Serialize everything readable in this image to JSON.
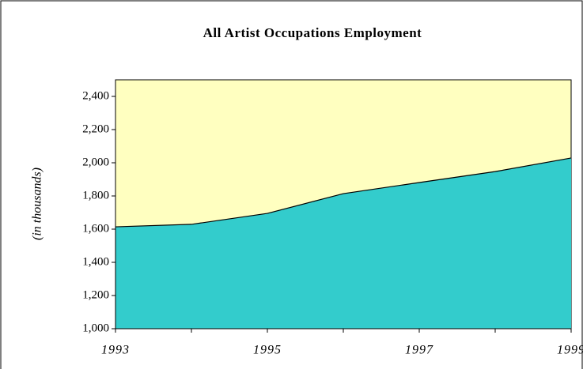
{
  "chart_data": {
    "type": "area",
    "title": "All Artist Occupations Employment",
    "y_label": "(in thousands)",
    "x": [
      1993,
      1994,
      1995,
      1996,
      1997,
      1998,
      1999
    ],
    "series": [
      {
        "name": "Employment",
        "color": "#33cccc",
        "values": [
          1614,
          1629,
          1695,
          1814,
          1881,
          1947,
          2029
        ]
      }
    ],
    "xlim": [
      1993,
      1999
    ],
    "xticks": [
      1993,
      1995,
      1997,
      1999
    ],
    "ylim": [
      1000,
      2500
    ],
    "yticks": [
      {
        "value": 1000,
        "label": "1,000"
      },
      {
        "value": 1200,
        "label": "1,200"
      },
      {
        "value": 1400,
        "label": "1,400"
      },
      {
        "value": 1600,
        "label": "1,600"
      },
      {
        "value": 1800,
        "label": "1,800"
      },
      {
        "value": 2000,
        "label": "2,000"
      },
      {
        "value": 2200,
        "label": "2,200"
      },
      {
        "value": 2400,
        "label": "2,400"
      }
    ],
    "plot_background": "#ffffc0",
    "legend": false
  }
}
